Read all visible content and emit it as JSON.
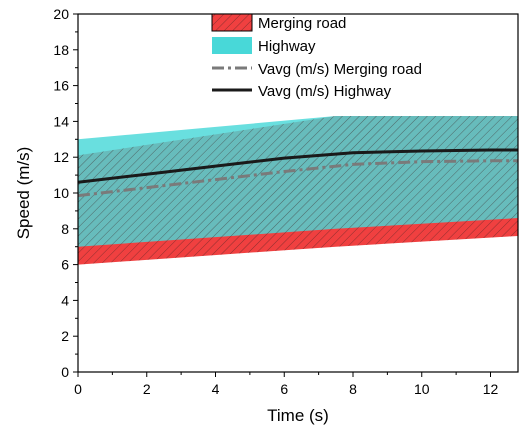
{
  "chart_data": {
    "type": "area",
    "xlabel": "Time (s)",
    "ylabel": "Speed (m/s)",
    "xlim": [
      0,
      12.8
    ],
    "ylim": [
      0,
      20
    ],
    "x_ticks": [
      "0",
      "2",
      "4",
      "6",
      "8",
      "10",
      "12"
    ],
    "y_ticks": [
      "0",
      "2",
      "4",
      "6",
      "8",
      "10",
      "12",
      "14",
      "16",
      "18",
      "20"
    ],
    "grid": false,
    "legend_position": "top-center",
    "series": [
      {
        "name": "Merging road",
        "kind": "band",
        "color": "#f04040",
        "pattern": "diagonal-hatch",
        "x": [
          0,
          7.5,
          12.8
        ],
        "upper": [
          12.1,
          14.3,
          14.3
        ],
        "lower": [
          6.0,
          7.0,
          7.6
        ]
      },
      {
        "name": "Highway",
        "kind": "band",
        "color": "#48d8d8",
        "x": [
          0,
          7.5,
          12.8
        ],
        "upper": [
          13.0,
          14.3,
          14.3
        ],
        "lower": [
          7.0,
          8.0,
          8.6
        ]
      },
      {
        "name": "Vavg (m/s) Merging road",
        "kind": "line",
        "style": "dash-dot",
        "color": "#7a7a7a",
        "x": [
          0,
          2,
          4,
          6,
          8,
          10,
          12,
          12.8
        ],
        "values": [
          9.85,
          10.3,
          10.75,
          11.2,
          11.6,
          11.75,
          11.8,
          11.8
        ]
      },
      {
        "name": "Vavg (m/s) Highway",
        "kind": "line",
        "style": "solid",
        "color": "#1a1a1a",
        "x": [
          0,
          2,
          4,
          6,
          8,
          10,
          12,
          12.8
        ],
        "values": [
          10.6,
          11.05,
          11.5,
          11.95,
          12.25,
          12.35,
          12.4,
          12.4
        ]
      }
    ]
  }
}
